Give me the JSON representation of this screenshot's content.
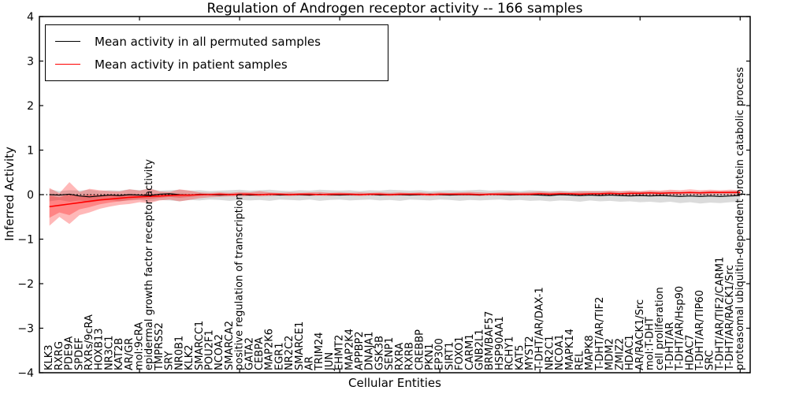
{
  "chart_data": {
    "type": "line",
    "title": "Regulation of Androgen receptor activity -- 166 samples",
    "xlabel": "Cellular Entities",
    "ylabel": "Inferred Activity",
    "ylim": [
      -4,
      4
    ],
    "ytick_values": [
      4,
      3,
      2,
      1,
      0,
      -1,
      -2,
      -3,
      -4
    ],
    "ytick_labels": [
      "4",
      "3",
      "2",
      "1",
      "0",
      "−1",
      "−2",
      "−3",
      "−4"
    ],
    "grid": false,
    "zero_line": true,
    "legend": {
      "position": "upper left",
      "entries": [
        {
          "label": "Mean activity in all permuted samples",
          "color": "#000000"
        },
        {
          "label": "Mean activity in patient samples",
          "color": "#ff0000"
        }
      ]
    },
    "categories": [
      "KLK3",
      "RXRG",
      "PDE9A",
      "SPDEF",
      "RXRs/9cRA",
      "HOXB13",
      "NR3C1",
      "KAT2B",
      "AR/GR",
      "mol:9cRA",
      "epidermal growth factor receptor activity",
      "TMPRSS2",
      "SRY",
      "NR0B1",
      "KLK2",
      "SMARCC1",
      "POU2F1",
      "NCOA2",
      "SMARCA2",
      "positive regulation of transcription",
      "GATA2",
      "CEBPA",
      "MAP2K6",
      "EGR1",
      "NR2C2",
      "SMARCE1",
      "AR",
      "TRIM24",
      "JUN",
      "EHMT2",
      "MAP2K4",
      "APPBP2",
      "DNAJA1",
      "GSK3B",
      "SENP1",
      "RXRA",
      "RXRB",
      "CREBBP",
      "PKN1",
      "EP300",
      "SIRT1",
      "FOXO1",
      "CARM1",
      "GNB2L1",
      "BRM/BAF57",
      "HSP90AA1",
      "RCHY1",
      "KAT5",
      "MYST2",
      "T-DHT/AR/DAX-1",
      "NR2C1",
      "NCOA1",
      "MAPK14",
      "REL",
      "MAPK8",
      "T-DHT/AR/TIF2",
      "MDM2",
      "ZMIZ2",
      "HDAC1",
      "AR/RACK1/Src",
      "mol:T-DHT",
      "cell proliferation",
      "T-DHT/AR",
      "T-DHT/AR/Hsp90",
      "HDAC7",
      "T-DHT/AR/TIP60",
      "SRC",
      "T-DHT/AR/TIF2/CARM1",
      "T-DHT/AR/RACK1/Src",
      "proteasomal ubiquitin-dependent protein catabolic process"
    ],
    "series": [
      {
        "name": "Mean activity in all permuted samples",
        "color": "#000000",
        "line_width": 1.2,
        "band_opacity": 0.14,
        "values": [
          0.0,
          -0.01,
          0.01,
          -0.03,
          -0.05,
          -0.03,
          -0.01,
          -0.02,
          0.0,
          -0.01,
          -0.02,
          0.01,
          0.02,
          0.0,
          -0.01,
          0.01,
          0.0,
          -0.01,
          0.0,
          0.01,
          -0.01,
          0.0,
          0.01,
          -0.01,
          0.0,
          0.0,
          -0.01,
          0.01,
          0.0,
          -0.01,
          0.0,
          0.0,
          0.01,
          -0.01,
          0.0,
          0.0,
          -0.01,
          0.0,
          0.01,
          0.0,
          -0.01,
          0.0,
          0.0,
          -0.01,
          0.01,
          0.0,
          -0.01,
          0.0,
          0.0,
          -0.01,
          -0.02,
          0.0,
          -0.01,
          -0.02,
          -0.01,
          -0.02,
          -0.01,
          -0.02,
          -0.03,
          -0.02,
          -0.03,
          -0.02,
          -0.03,
          -0.04,
          -0.03,
          -0.04,
          -0.03,
          -0.04,
          -0.03,
          -0.02
        ],
        "band_hi": [
          0.12,
          0.08,
          0.1,
          0.09,
          0.11,
          0.08,
          0.1,
          0.09,
          0.12,
          0.1,
          0.13,
          0.09,
          0.1,
          0.11,
          0.09,
          0.1,
          0.08,
          0.09,
          0.1,
          0.11,
          0.09,
          0.1,
          0.11,
          0.09,
          0.08,
          0.1,
          0.09,
          0.11,
          0.1,
          0.09,
          0.1,
          0.08,
          0.1,
          0.09,
          0.11,
          0.1,
          0.09,
          0.1,
          0.08,
          0.09,
          0.1,
          0.09,
          0.1,
          0.11,
          0.09,
          0.1,
          0.09,
          0.08,
          0.1,
          0.09,
          0.08,
          0.09,
          0.08,
          0.09,
          0.08,
          0.09,
          0.08,
          0.07,
          0.08,
          0.07,
          0.08,
          0.07,
          0.08,
          0.07,
          0.06,
          0.07,
          0.08,
          0.07,
          0.08,
          0.09
        ],
        "band_lo": [
          -0.15,
          -0.12,
          -0.16,
          -0.13,
          -0.18,
          -0.14,
          -0.12,
          -0.15,
          -0.13,
          -0.12,
          -0.16,
          -0.12,
          -0.13,
          -0.15,
          -0.12,
          -0.13,
          -0.11,
          -0.12,
          -0.14,
          -0.12,
          -0.13,
          -0.12,
          -0.14,
          -0.11,
          -0.12,
          -0.13,
          -0.11,
          -0.14,
          -0.12,
          -0.11,
          -0.13,
          -0.12,
          -0.11,
          -0.13,
          -0.12,
          -0.14,
          -0.11,
          -0.12,
          -0.13,
          -0.11,
          -0.12,
          -0.14,
          -0.12,
          -0.13,
          -0.12,
          -0.11,
          -0.13,
          -0.12,
          -0.14,
          -0.13,
          -0.15,
          -0.13,
          -0.14,
          -0.16,
          -0.13,
          -0.15,
          -0.14,
          -0.16,
          -0.15,
          -0.17,
          -0.16,
          -0.18,
          -0.16,
          -0.19,
          -0.17,
          -0.2,
          -0.18,
          -0.19,
          -0.17,
          -0.16
        ]
      },
      {
        "name": "Mean activity in patient samples",
        "color": "#ff0000",
        "line_width": 1.6,
        "band_opacity": 0.28,
        "values": [
          -0.27,
          -0.24,
          -0.21,
          -0.18,
          -0.15,
          -0.12,
          -0.1,
          -0.08,
          -0.06,
          -0.05,
          -0.04,
          -0.03,
          -0.02,
          -0.01,
          -0.01,
          0.0,
          0.0,
          0.01,
          0.0,
          0.01,
          0.01,
          0.0,
          0.01,
          0.01,
          0.0,
          0.01,
          0.01,
          0.0,
          0.01,
          0.01,
          0.01,
          0.0,
          0.01,
          0.01,
          0.0,
          0.01,
          0.01,
          0.01,
          0.0,
          0.01,
          0.01,
          0.01,
          0.01,
          0.0,
          0.01,
          0.01,
          0.01,
          0.01,
          0.01,
          0.02,
          0.01,
          0.02,
          0.02,
          0.01,
          0.02,
          0.02,
          0.03,
          0.02,
          0.03,
          0.03,
          0.04,
          0.03,
          0.04,
          0.04,
          0.05,
          0.04,
          0.05,
          0.05,
          0.05,
          0.05
        ],
        "band_hi": [
          0.15,
          0.03,
          0.28,
          0.06,
          0.13,
          0.1,
          0.08,
          0.07,
          0.12,
          0.09,
          0.14,
          0.07,
          0.06,
          0.12,
          0.09,
          0.05,
          0.04,
          0.05,
          0.04,
          0.06,
          0.05,
          0.08,
          0.05,
          0.04,
          0.05,
          0.04,
          0.05,
          0.06,
          0.04,
          0.05,
          0.04,
          0.05,
          0.04,
          0.05,
          0.04,
          0.05,
          0.04,
          0.05,
          0.04,
          0.05,
          0.04,
          0.05,
          0.06,
          0.05,
          0.04,
          0.05,
          0.06,
          0.05,
          0.06,
          0.07,
          0.06,
          0.07,
          0.06,
          0.07,
          0.08,
          0.07,
          0.09,
          0.08,
          0.09,
          0.08,
          0.1,
          0.09,
          0.11,
          0.1,
          0.12,
          0.1,
          0.11,
          0.1,
          0.11,
          0.1
        ],
        "band_lo": [
          -0.7,
          -0.5,
          -0.66,
          -0.46,
          -0.4,
          -0.32,
          -0.27,
          -0.23,
          -0.21,
          -0.17,
          -0.19,
          -0.13,
          -0.11,
          -0.15,
          -0.12,
          -0.08,
          -0.06,
          -0.05,
          -0.04,
          -0.04,
          -0.03,
          -0.04,
          -0.03,
          -0.02,
          -0.03,
          -0.02,
          -0.03,
          -0.02,
          -0.03,
          -0.02,
          -0.02,
          -0.03,
          -0.02,
          -0.02,
          -0.03,
          -0.02,
          -0.02,
          -0.02,
          -0.03,
          -0.02,
          -0.02,
          -0.02,
          -0.02,
          -0.03,
          -0.02,
          -0.02,
          -0.02,
          -0.02,
          -0.02,
          -0.01,
          -0.02,
          -0.01,
          -0.02,
          -0.02,
          -0.01,
          -0.02,
          -0.01,
          -0.01,
          -0.02,
          -0.01,
          -0.01,
          -0.02,
          -0.01,
          -0.01,
          0.0,
          -0.01,
          -0.01,
          0.0,
          -0.01,
          -0.01
        ],
        "inner_band_hi": [
          -0.02,
          -0.06,
          0.02,
          -0.03,
          0.0,
          -0.01,
          0.0,
          -0.01,
          0.01,
          0.0,
          0.01,
          0.0,
          0.0,
          0.01,
          0.0,
          0.0,
          0.0,
          0.01,
          0.0,
          0.01,
          0.01,
          0.0,
          0.01,
          0.01,
          0.0,
          0.01,
          0.01,
          0.0,
          0.01,
          0.01,
          0.01,
          0.0,
          0.01,
          0.01,
          0.0,
          0.01,
          0.01,
          0.01,
          0.0,
          0.01,
          0.01,
          0.01,
          0.01,
          0.0,
          0.01,
          0.01,
          0.01,
          0.01,
          0.01,
          0.02,
          0.01,
          0.02,
          0.02,
          0.01,
          0.02,
          0.02,
          0.03,
          0.02,
          0.03,
          0.03,
          0.04,
          0.03,
          0.04,
          0.04,
          0.05,
          0.04,
          0.05,
          0.05,
          0.05,
          0.05
        ],
        "inner_band_lo": [
          -0.52,
          -0.4,
          -0.46,
          -0.33,
          -0.28,
          -0.22,
          -0.18,
          -0.15,
          -0.12,
          -0.1,
          -0.1,
          -0.07,
          -0.05,
          -0.07,
          -0.05,
          -0.03,
          0.0,
          0.01,
          0.0,
          0.01,
          0.01,
          0.0,
          0.01,
          0.01,
          0.0,
          0.01,
          0.01,
          0.0,
          0.01,
          0.01,
          0.01,
          0.0,
          0.01,
          0.01,
          0.0,
          0.01,
          0.01,
          0.01,
          0.0,
          0.01,
          0.01,
          0.01,
          0.01,
          0.0,
          0.01,
          0.01,
          0.01,
          0.01,
          0.01,
          0.02,
          0.01,
          0.02,
          0.02,
          0.01,
          0.02,
          0.02,
          0.03,
          0.02,
          0.03,
          0.03,
          0.04,
          0.03,
          0.04,
          0.04,
          0.05,
          0.04,
          0.05,
          0.05,
          0.05,
          0.05
        ]
      }
    ]
  },
  "colors": {
    "frame": "#000000",
    "permuted_line": "#000000",
    "patient_line": "#ff0000",
    "background": "#ffffff"
  }
}
